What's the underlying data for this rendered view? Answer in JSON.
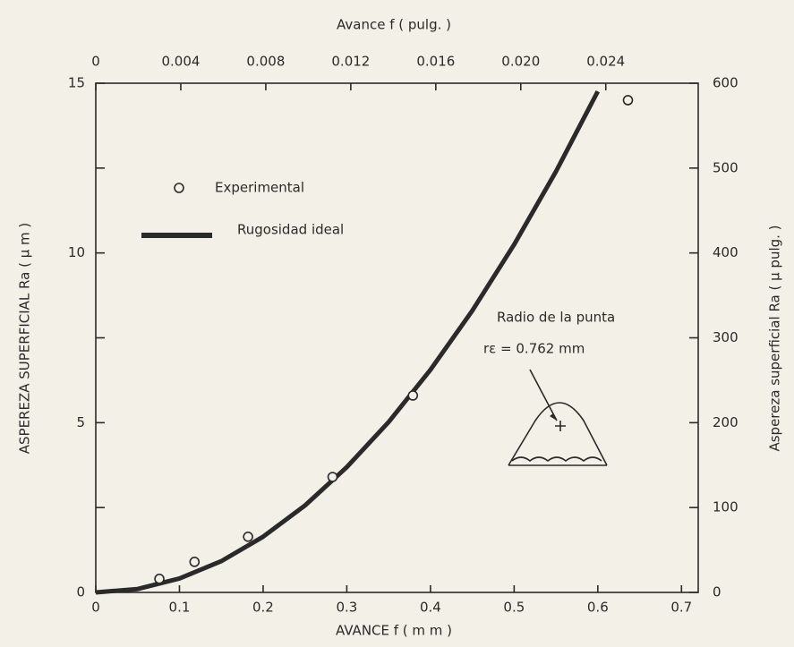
{
  "chart_data": {
    "type": "scatter-line",
    "top_axis_label": "Avance   f  ( pulg. )",
    "x_label": "AVANCE   f  ( m m )",
    "y_label": "ASPEREZA   SUPERFICIAL   Ra  ( μ m )",
    "y2_label": "Aspereza   superficial   Ra   ( μ pulg. )",
    "annotation": "Radio de la punta",
    "annotation2": "rε = 0.762  mm",
    "xlim": [
      0,
      0.72
    ],
    "xticks": [
      0,
      0.1,
      0.2,
      0.3,
      0.4,
      0.5,
      0.6,
      0.7
    ],
    "x2lim": [
      0,
      0.02835
    ],
    "x2ticks": [
      0,
      {
        "value": 0.004,
        "label": "0.004"
      },
      {
        "value": 0.008,
        "label": "0.008"
      },
      {
        "value": 0.012,
        "label": "0.012"
      },
      {
        "value": 0.016,
        "label": "0.016"
      },
      {
        "value": 0.02,
        "label": "0.020"
      },
      {
        "value": 0.024,
        "label": "0.024"
      }
    ],
    "ylim": [
      0,
      15
    ],
    "yticks": [
      0,
      5,
      10,
      15
    ],
    "yminor": [
      2.5,
      7.5,
      12.5
    ],
    "y2lim": [
      0,
      600
    ],
    "y2ticks": [
      0,
      100,
      200,
      300,
      400,
      500,
      600
    ],
    "series": [
      {
        "name": "Experimental",
        "color": "#2a2a2a",
        "x": [
          0.076,
          0.118,
          0.182,
          0.283,
          0.379,
          0.636
        ],
        "values": [
          0.4,
          0.9,
          1.64,
          3.4,
          5.8,
          14.5
        ]
      },
      {
        "name": "Rugosidad ideal",
        "color": "#2a2a2a",
        "x": [
          0,
          0.05,
          0.1,
          0.15,
          0.2,
          0.25,
          0.3,
          0.35,
          0.4,
          0.45,
          0.5,
          0.55,
          0.6
        ],
        "values": [
          0,
          0.1,
          0.41,
          0.92,
          1.64,
          2.56,
          3.69,
          5.02,
          6.56,
          8.3,
          10.25,
          12.4,
          14.76
        ]
      }
    ]
  }
}
